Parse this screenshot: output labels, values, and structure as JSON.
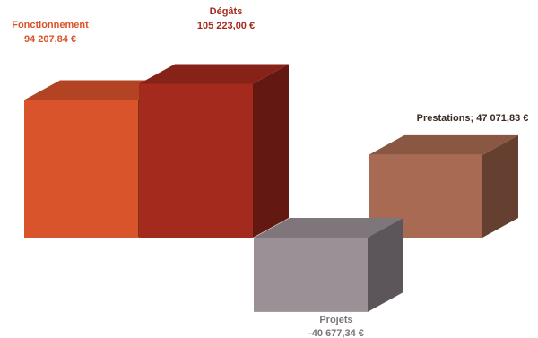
{
  "chart_data": {
    "type": "bar",
    "style": "3d-waterfall",
    "categories": [
      "Fonctionnement",
      "Dégâts",
      "Projets",
      "Prestations"
    ],
    "values": [
      94207.84,
      105223.0,
      -40677.34,
      47071.83
    ],
    "value_labels": [
      "94 207,84 €",
      "105 223,00 €",
      "-40 677,34 €",
      "47 071,83 €"
    ],
    "combined_labels": [
      "Prestations; 47 071,83 €"
    ],
    "colors": [
      "#d9532b",
      "#a52a1e",
      "#9a9096",
      "#a86a52"
    ],
    "label_colors": [
      "#d9532b",
      "#a52a1e",
      "#7a7478",
      "#3a2a22"
    ],
    "legend": "none",
    "grid": false,
    "axes_visible": false
  }
}
